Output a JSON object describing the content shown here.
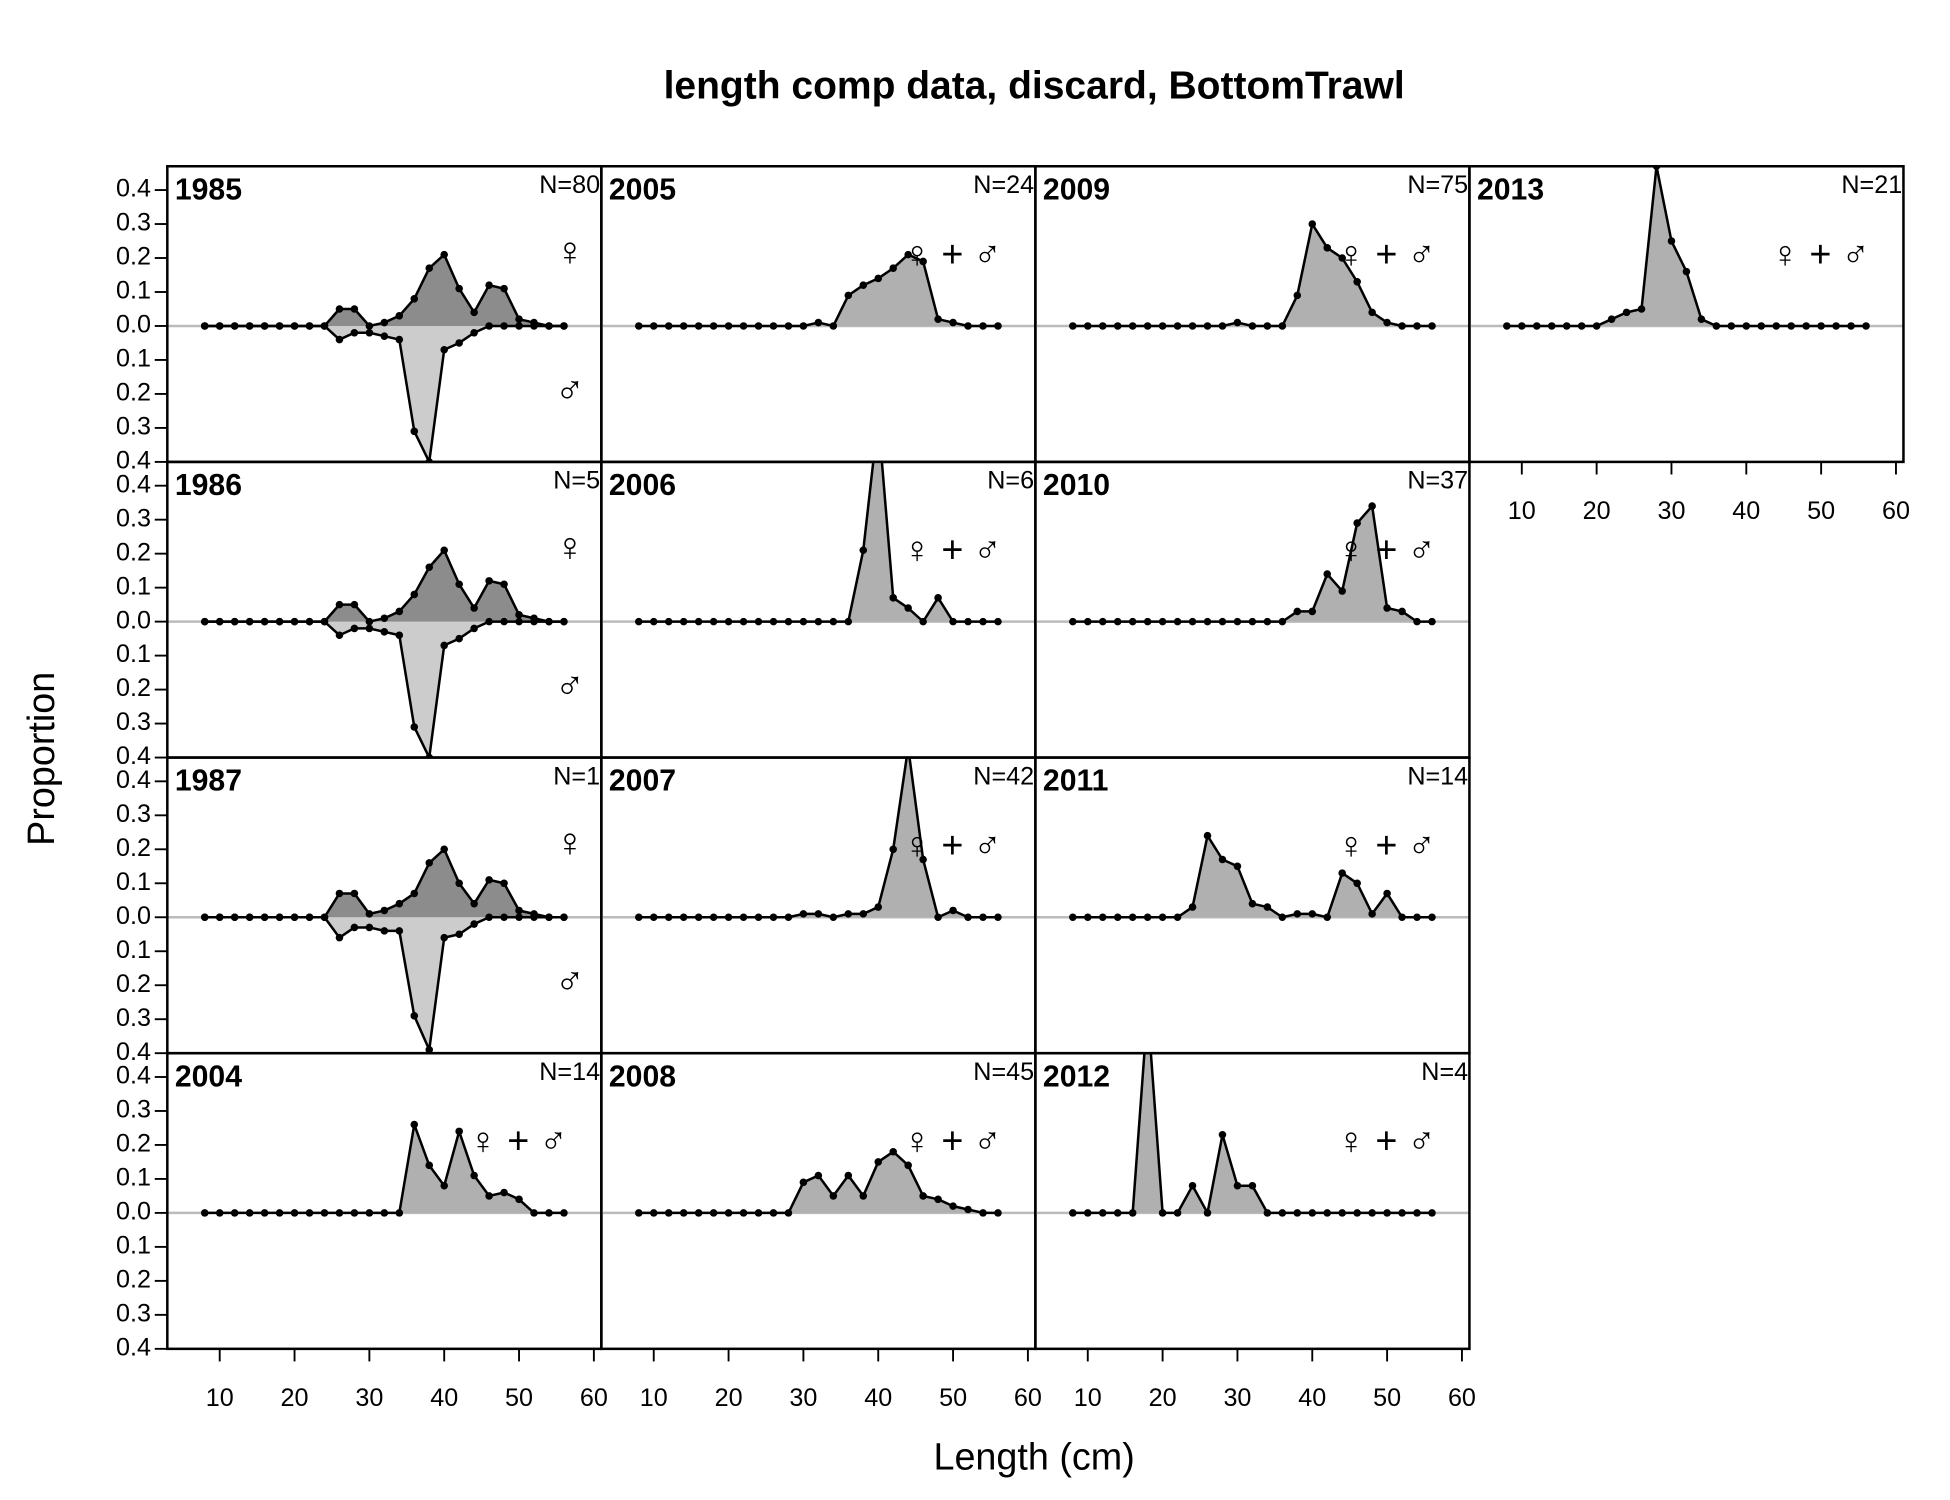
{
  "title": "length comp data, discard, BottomTrawl",
  "x_label": "Length (cm)",
  "y_label": "Proportion",
  "chart_data": [
    {
      "type": "area",
      "title": "1985",
      "annotation": "N=80",
      "x": [
        8,
        10,
        12,
        14,
        16,
        18,
        20,
        22,
        24,
        26,
        28,
        30,
        32,
        34,
        36,
        38,
        40,
        42,
        44,
        46,
        48,
        50,
        52,
        54,
        56
      ],
      "series": [
        {
          "name": "♀",
          "color": "#8c8c8c",
          "symbol_color": "#e8242c",
          "values": [
            0,
            0,
            0,
            0,
            0,
            0,
            0,
            0,
            0,
            0.05,
            0.05,
            0,
            0.01,
            0.03,
            0.08,
            0.17,
            0.21,
            0.11,
            0.04,
            0.12,
            0.11,
            0.02,
            0.01,
            0,
            0
          ]
        },
        {
          "name": "♂",
          "color": "#cccccc",
          "symbol_color": "#2323c8",
          "values": [
            0,
            0,
            0,
            0,
            0,
            0,
            0,
            0,
            0,
            -0.04,
            -0.02,
            -0.02,
            -0.03,
            -0.04,
            -0.31,
            -0.4,
            -0.07,
            -0.05,
            -0.02,
            0,
            0,
            0,
            0,
            0,
            0
          ]
        }
      ],
      "xlim": [
        3,
        61
      ],
      "ylim": [
        -0.4,
        0.47
      ],
      "yticks": [
        {
          "value": -0.4,
          "label": "0.4"
        },
        {
          "value": -0.3,
          "label": "0.3"
        },
        {
          "value": -0.2,
          "label": "0.2"
        },
        {
          "value": -0.1,
          "label": "0.1"
        },
        {
          "value": 0,
          "label": "0.0"
        },
        0.1,
        0.2,
        0.3,
        0.4
      ]
    },
    {
      "type": "area",
      "title": "1986",
      "annotation": "N=5",
      "x": [
        8,
        10,
        12,
        14,
        16,
        18,
        20,
        22,
        24,
        26,
        28,
        30,
        32,
        34,
        36,
        38,
        40,
        42,
        44,
        46,
        48,
        50,
        52,
        54,
        56
      ],
      "series": [
        {
          "name": "♀",
          "color": "#8c8c8c",
          "symbol_color": "#e8242c",
          "values": [
            0,
            0,
            0,
            0,
            0,
            0,
            0,
            0,
            0,
            0.05,
            0.05,
            0,
            0.01,
            0.03,
            0.08,
            0.16,
            0.21,
            0.11,
            0.04,
            0.12,
            0.11,
            0.02,
            0.01,
            0,
            0
          ]
        },
        {
          "name": "♂",
          "color": "#cccccc",
          "symbol_color": "#2323c8",
          "values": [
            0,
            0,
            0,
            0,
            0,
            0,
            0,
            0,
            0,
            -0.04,
            -0.02,
            -0.02,
            -0.03,
            -0.04,
            -0.31,
            -0.4,
            -0.07,
            -0.05,
            -0.02,
            0,
            0,
            0,
            0,
            0,
            0
          ]
        }
      ],
      "xlim": [
        3,
        61
      ],
      "ylim": [
        -0.4,
        0.47
      ],
      "yticks": [
        {
          "value": -0.4,
          "label": "0.4"
        },
        {
          "value": -0.3,
          "label": "0.3"
        },
        {
          "value": -0.2,
          "label": "0.2"
        },
        {
          "value": -0.1,
          "label": "0.1"
        },
        {
          "value": 0,
          "label": "0.0"
        },
        0.1,
        0.2,
        0.3,
        0.4
      ]
    },
    {
      "type": "area",
      "title": "1987",
      "annotation": "N=1",
      "x": [
        8,
        10,
        12,
        14,
        16,
        18,
        20,
        22,
        24,
        26,
        28,
        30,
        32,
        34,
        36,
        38,
        40,
        42,
        44,
        46,
        48,
        50,
        52,
        54,
        56
      ],
      "series": [
        {
          "name": "♀",
          "color": "#8c8c8c",
          "symbol_color": "#e8242c",
          "values": [
            0,
            0,
            0,
            0,
            0,
            0,
            0,
            0,
            0,
            0.07,
            0.07,
            0.01,
            0.02,
            0.04,
            0.07,
            0.16,
            0.2,
            0.1,
            0.04,
            0.11,
            0.1,
            0.02,
            0.01,
            0,
            0
          ]
        },
        {
          "name": "♂",
          "color": "#cccccc",
          "symbol_color": "#2323c8",
          "values": [
            0,
            0,
            0,
            0,
            0,
            0,
            0,
            0,
            0,
            -0.06,
            -0.03,
            -0.03,
            -0.04,
            -0.04,
            -0.29,
            -0.39,
            -0.06,
            -0.05,
            -0.02,
            0,
            0,
            0,
            0,
            0,
            0
          ]
        }
      ],
      "xlim": [
        3,
        61
      ],
      "ylim": [
        -0.4,
        0.47
      ],
      "yticks": [
        {
          "value": -0.4,
          "label": "0.4"
        },
        {
          "value": -0.3,
          "label": "0.3"
        },
        {
          "value": -0.2,
          "label": "0.2"
        },
        {
          "value": -0.1,
          "label": "0.1"
        },
        {
          "value": 0,
          "label": "0.0"
        },
        0.1,
        0.2,
        0.3,
        0.4
      ]
    },
    {
      "type": "area",
      "title": "2004",
      "annotation": "N=14",
      "x": [
        8,
        10,
        12,
        14,
        16,
        18,
        20,
        22,
        24,
        26,
        28,
        30,
        32,
        34,
        36,
        38,
        40,
        42,
        44,
        46,
        48,
        50,
        52,
        54,
        56
      ],
      "series": [
        {
          "name": "♀+♂",
          "color": "#b0b0b0",
          "symbol_color": "#1e8c1e",
          "values": [
            0,
            0,
            0,
            0,
            0,
            0,
            0,
            0,
            0,
            0,
            0,
            0,
            0,
            0,
            0.26,
            0.14,
            0.08,
            0.24,
            0.11,
            0.05,
            0.06,
            0.04,
            0,
            0,
            0
          ]
        }
      ],
      "xlim": [
        3,
        61
      ],
      "ylim": [
        -0.4,
        0.47
      ],
      "yticks": [
        {
          "value": -0.4,
          "label": "0.4"
        },
        {
          "value": -0.3,
          "label": "0.3"
        },
        {
          "value": -0.2,
          "label": "0.2"
        },
        {
          "value": -0.1,
          "label": "0.1"
        },
        {
          "value": 0,
          "label": "0.0"
        },
        0.1,
        0.2,
        0.3,
        0.4
      ],
      "xticks": [
        10,
        20,
        30,
        40,
        50,
        60
      ]
    },
    {
      "type": "area",
      "title": "2005",
      "annotation": "N=24",
      "x": [
        8,
        10,
        12,
        14,
        16,
        18,
        20,
        22,
        24,
        26,
        28,
        30,
        32,
        34,
        36,
        38,
        40,
        42,
        44,
        46,
        48,
        50,
        52,
        54,
        56
      ],
      "series": [
        {
          "name": "♀+♂",
          "color": "#b0b0b0",
          "symbol_color": "#1e8c1e",
          "values": [
            0,
            0,
            0,
            0,
            0,
            0,
            0,
            0,
            0,
            0,
            0,
            0,
            0.01,
            0,
            0.09,
            0.12,
            0.14,
            0.17,
            0.21,
            0.19,
            0.02,
            0.01,
            0,
            0,
            0
          ]
        }
      ],
      "xlim": [
        3,
        61
      ],
      "ylim": [
        -0.4,
        0.47
      ]
    },
    {
      "type": "area",
      "title": "2006",
      "annotation": "N=6",
      "x": [
        8,
        10,
        12,
        14,
        16,
        18,
        20,
        22,
        24,
        26,
        28,
        30,
        32,
        34,
        36,
        38,
        40,
        42,
        44,
        46,
        48,
        50,
        52,
        54,
        56
      ],
      "series": [
        {
          "name": "♀+♂",
          "color": "#b0b0b0",
          "symbol_color": "#1e8c1e",
          "values": [
            0,
            0,
            0,
            0,
            0,
            0,
            0,
            0,
            0,
            0,
            0,
            0,
            0,
            0,
            0,
            0.21,
            0.6,
            0.07,
            0.04,
            0,
            0.07,
            0,
            0,
            0,
            0
          ]
        }
      ],
      "xlim": [
        3,
        61
      ],
      "ylim": [
        -0.4,
        0.47
      ]
    },
    {
      "type": "area",
      "title": "2007",
      "annotation": "N=42",
      "x": [
        8,
        10,
        12,
        14,
        16,
        18,
        20,
        22,
        24,
        26,
        28,
        30,
        32,
        34,
        36,
        38,
        40,
        42,
        44,
        46,
        48,
        50,
        52,
        54,
        56
      ],
      "series": [
        {
          "name": "♀+♂",
          "color": "#b0b0b0",
          "symbol_color": "#1e8c1e",
          "values": [
            0,
            0,
            0,
            0,
            0,
            0,
            0,
            0,
            0,
            0,
            0,
            0.01,
            0.01,
            0,
            0.01,
            0.01,
            0.03,
            0.2,
            0.5,
            0.17,
            0,
            0.02,
            0,
            0,
            0
          ]
        }
      ],
      "xlim": [
        3,
        61
      ],
      "ylim": [
        -0.4,
        0.47
      ]
    },
    {
      "type": "area",
      "title": "2008",
      "annotation": "N=45",
      "x": [
        8,
        10,
        12,
        14,
        16,
        18,
        20,
        22,
        24,
        26,
        28,
        30,
        32,
        34,
        36,
        38,
        40,
        42,
        44,
        46,
        48,
        50,
        52,
        54,
        56
      ],
      "series": [
        {
          "name": "♀+♂",
          "color": "#b0b0b0",
          "symbol_color": "#1e8c1e",
          "values": [
            0,
            0,
            0,
            0,
            0,
            0,
            0,
            0,
            0,
            0,
            0,
            0.09,
            0.11,
            0.05,
            0.11,
            0.05,
            0.15,
            0.18,
            0.14,
            0.05,
            0.04,
            0.02,
            0.01,
            0,
            0
          ]
        }
      ],
      "xlim": [
        3,
        61
      ],
      "ylim": [
        -0.4,
        0.47
      ],
      "xticks": [
        10,
        20,
        30,
        40,
        50,
        60
      ]
    },
    {
      "type": "area",
      "title": "2009",
      "annotation": "N=75",
      "x": [
        8,
        10,
        12,
        14,
        16,
        18,
        20,
        22,
        24,
        26,
        28,
        30,
        32,
        34,
        36,
        38,
        40,
        42,
        44,
        46,
        48,
        50,
        52,
        54,
        56
      ],
      "series": [
        {
          "name": "♀+♂",
          "color": "#b0b0b0",
          "symbol_color": "#1e8c1e",
          "values": [
            0,
            0,
            0,
            0,
            0,
            0,
            0,
            0,
            0,
            0,
            0,
            0.01,
            0,
            0,
            0,
            0.09,
            0.3,
            0.23,
            0.2,
            0.13,
            0.04,
            0.01,
            0,
            0,
            0
          ]
        }
      ],
      "xlim": [
        3,
        61
      ],
      "ylim": [
        -0.4,
        0.47
      ]
    },
    {
      "type": "area",
      "title": "2010",
      "annotation": "N=37",
      "x": [
        8,
        10,
        12,
        14,
        16,
        18,
        20,
        22,
        24,
        26,
        28,
        30,
        32,
        34,
        36,
        38,
        40,
        42,
        44,
        46,
        48,
        50,
        52,
        54,
        56
      ],
      "series": [
        {
          "name": "♀+♂",
          "color": "#b0b0b0",
          "symbol_color": "#1e8c1e",
          "values": [
            0,
            0,
            0,
            0,
            0,
            0,
            0,
            0,
            0,
            0,
            0,
            0,
            0,
            0,
            0,
            0.03,
            0.03,
            0.14,
            0.09,
            0.29,
            0.34,
            0.04,
            0.03,
            0,
            0
          ]
        }
      ],
      "xlim": [
        3,
        61
      ],
      "ylim": [
        -0.4,
        0.47
      ]
    },
    {
      "type": "area",
      "title": "2011",
      "annotation": "N=14",
      "x": [
        8,
        10,
        12,
        14,
        16,
        18,
        20,
        22,
        24,
        26,
        28,
        30,
        32,
        34,
        36,
        38,
        40,
        42,
        44,
        46,
        48,
        50,
        52,
        54,
        56
      ],
      "series": [
        {
          "name": "♀+♂",
          "color": "#b0b0b0",
          "symbol_color": "#1e8c1e",
          "values": [
            0,
            0,
            0,
            0,
            0,
            0,
            0,
            0,
            0.03,
            0.24,
            0.17,
            0.15,
            0.04,
            0.03,
            0,
            0.01,
            0.01,
            0,
            0.13,
            0.1,
            0.01,
            0.07,
            0,
            0,
            0
          ]
        }
      ],
      "xlim": [
        3,
        61
      ],
      "ylim": [
        -0.4,
        0.47
      ]
    },
    {
      "type": "area",
      "title": "2012",
      "annotation": "N=4",
      "x": [
        8,
        10,
        12,
        14,
        16,
        18,
        20,
        22,
        24,
        26,
        28,
        30,
        32,
        34,
        36,
        38,
        40,
        42,
        44,
        46,
        48,
        50,
        52,
        54,
        56
      ],
      "series": [
        {
          "name": "♀+♂",
          "color": "#b0b0b0",
          "symbol_color": "#1e8c1e",
          "values": [
            0,
            0,
            0,
            0,
            0,
            0.6,
            0,
            0,
            0.08,
            0,
            0.23,
            0.08,
            0.08,
            0,
            0,
            0,
            0,
            0,
            0,
            0,
            0,
            0,
            0,
            0,
            0
          ]
        }
      ],
      "xlim": [
        3,
        61
      ],
      "ylim": [
        -0.4,
        0.47
      ],
      "xticks": [
        10,
        20,
        30,
        40,
        50,
        60
      ]
    },
    {
      "type": "area",
      "title": "2013",
      "annotation": "N=21",
      "x": [
        8,
        10,
        12,
        14,
        16,
        18,
        20,
        22,
        24,
        26,
        28,
        30,
        32,
        34,
        36,
        38,
        40,
        42,
        44,
        46,
        48,
        50,
        52,
        54,
        56
      ],
      "series": [
        {
          "name": "♀+♂",
          "color": "#b0b0b0",
          "symbol_color": "#1e8c1e",
          "values": [
            0,
            0,
            0,
            0,
            0,
            0,
            0,
            0.02,
            0.04,
            0.05,
            0.47,
            0.25,
            0.16,
            0.02,
            0,
            0,
            0,
            0,
            0,
            0,
            0,
            0,
            0,
            0,
            0
          ]
        }
      ],
      "xlim": [
        3,
        61
      ],
      "ylim": [
        -0.4,
        0.47
      ],
      "xticks": [
        10,
        20,
        30,
        40,
        50,
        60
      ]
    }
  ]
}
